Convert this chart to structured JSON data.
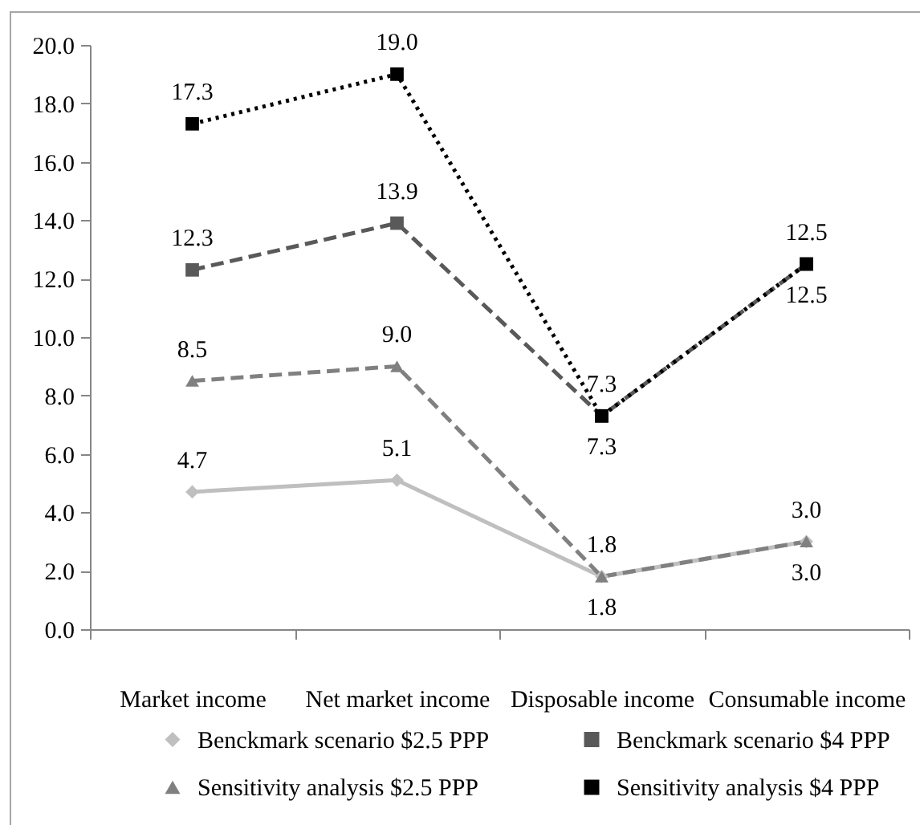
{
  "chart_data": {
    "type": "line",
    "categories": [
      "Market income",
      "Net market income",
      "Disposable income",
      "Consumable income"
    ],
    "series": [
      {
        "name": "Benckmark scenario $2.5 PPP",
        "color": "#bfbfbf",
        "marker": "diamond",
        "line_style": "solid",
        "values": [
          4.7,
          5.1,
          1.8,
          3.0
        ],
        "value_labels": [
          "4.7",
          "5.1",
          "1.8",
          "3.0"
        ]
      },
      {
        "name": "Benckmark scenario $4 PPP",
        "color": "#595959",
        "marker": "square",
        "line_style": "dashed",
        "values": [
          12.3,
          13.9,
          7.3,
          12.5
        ],
        "value_labels": [
          "12.3",
          "13.9",
          "7.3",
          "12.5"
        ]
      },
      {
        "name": "Sensitivity analysis $2.5 PPP",
        "color": "#808080",
        "marker": "triangle",
        "line_style": "dashed",
        "values": [
          8.5,
          9.0,
          1.8,
          3.0
        ],
        "value_labels": [
          "8.5",
          "9.0",
          "1.8",
          "3.0"
        ]
      },
      {
        "name": "Sensitivity analysis $4 PPP",
        "color": "#000000",
        "marker": "square",
        "line_style": "dotted",
        "values": [
          17.3,
          19.0,
          7.3,
          12.5
        ],
        "value_labels": [
          "17.3",
          "19.0",
          "7.3",
          "12.5"
        ]
      }
    ],
    "ylim": [
      0,
      20
    ],
    "yticks": [
      {
        "value": 0,
        "label": "0.0"
      },
      {
        "value": 2,
        "label": "2.0"
      },
      {
        "value": 4,
        "label": "4.0"
      },
      {
        "value": 6,
        "label": "6.0"
      },
      {
        "value": 8,
        "label": "8.0"
      },
      {
        "value": 10,
        "label": "10.0"
      },
      {
        "value": 12,
        "label": "12.0"
      },
      {
        "value": 14,
        "label": "14.0"
      },
      {
        "value": 16,
        "label": "16.0"
      },
      {
        "value": 18,
        "label": "18.0"
      },
      {
        "value": 20,
        "label": "20.0"
      }
    ],
    "grid": false,
    "legend": "bottom"
  }
}
